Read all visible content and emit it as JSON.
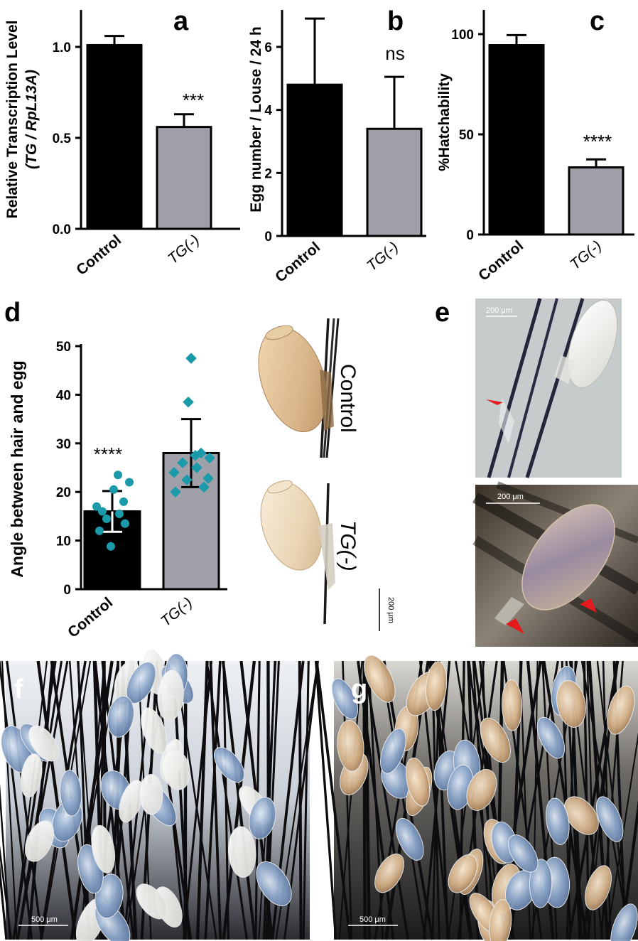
{
  "chart_data": [
    {
      "id": "a",
      "type": "bar",
      "panel_letter": "a",
      "categories": [
        "Control",
        "TG(-)"
      ],
      "values": [
        1.01,
        0.56
      ],
      "errors": [
        0.05,
        0.07
      ],
      "ylabel_line1": "Relative Transcription Level",
      "ylabel_line2": "(TG / RpL13A)",
      "ylim": [
        0,
        1.2
      ],
      "ticks": [
        "0.0",
        "0.5",
        "1.0"
      ],
      "tick_values": [
        0,
        0.5,
        1.0
      ],
      "significance": "***",
      "bar_colors": [
        "#000000",
        "#a0a0a8"
      ]
    },
    {
      "id": "b",
      "type": "bar",
      "panel_letter": "b",
      "categories": [
        "Control",
        "TG(-)"
      ],
      "values": [
        4.8,
        3.4
      ],
      "errors": [
        2.1,
        1.65
      ],
      "ylabel": "Egg number / Louse / 24 h",
      "ylim": [
        0,
        7.5
      ],
      "ticks": [
        "0",
        "2",
        "4",
        "6"
      ],
      "tick_values": [
        0,
        2,
        4,
        6
      ],
      "significance": "ns",
      "bar_colors": [
        "#000000",
        "#a0a0a8"
      ]
    },
    {
      "id": "c",
      "type": "bar",
      "panel_letter": "c",
      "categories": [
        "Control",
        "TG(-)"
      ],
      "values": [
        94.5,
        33.5
      ],
      "errors": [
        5,
        4
      ],
      "ylabel": "%Hatchability",
      "ylim": [
        0,
        110
      ],
      "ticks": [
        "0",
        "50",
        "100"
      ],
      "tick_values": [
        0,
        50,
        100
      ],
      "significance": "****",
      "bar_colors": [
        "#000000",
        "#a0a0a8"
      ]
    },
    {
      "id": "d",
      "type": "bar",
      "panel_letter": "d",
      "categories": [
        "Control",
        "TG(-)"
      ],
      "values": [
        16,
        28
      ],
      "errors": [
        4.2,
        7
      ],
      "ylabel": "Angle between hair and egg",
      "ylim": [
        0,
        50
      ],
      "ticks": [
        "0",
        "10",
        "20",
        "30",
        "40",
        "50"
      ],
      "tick_values": [
        0,
        10,
        20,
        30,
        40,
        50
      ],
      "significance": "****",
      "bar_colors": [
        "#000000",
        "#a0a0a8"
      ],
      "points": [
        {
          "group": "Control",
          "values": [
            8.8,
            12,
            13.5,
            14.5,
            15.5,
            17,
            18,
            20.5,
            23.5,
            22,
            16
          ]
        },
        {
          "group": "TG(-)",
          "values": [
            20,
            21,
            22.5,
            22.8,
            24,
            25,
            26,
            27,
            27.5,
            28,
            38.5,
            47.5
          ]
        }
      ],
      "point_color": "#1b9aaa"
    }
  ],
  "photos": {
    "d_control_label": "Control",
    "d_tg_label": "TG(-)",
    "d_scale": "200 μm",
    "e_panel_letter": "e",
    "e_top_scale": "200 μm",
    "e_bottom_scale": "200 μm",
    "f_panel_letter": "f",
    "f_scale": "500 μm",
    "g_panel_letter": "g",
    "g_scale": "500 μm"
  }
}
